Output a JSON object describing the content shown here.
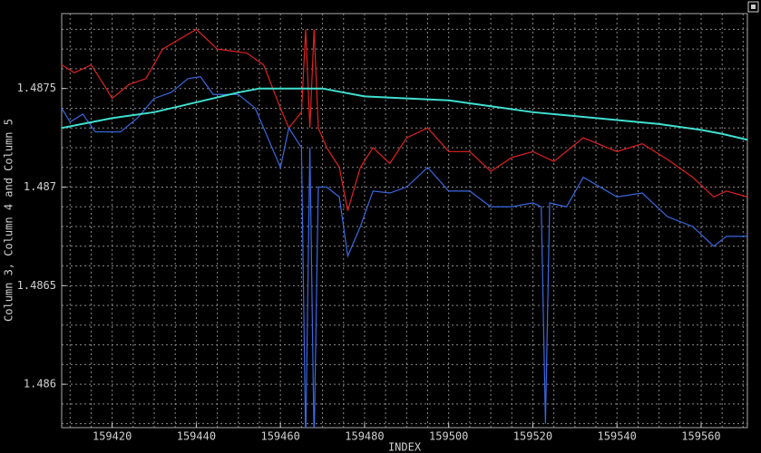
{
  "chart_data": {
    "type": "line",
    "ylabel": "Column 3, Column 4 and Column 5",
    "xlabel": "INDEX",
    "xlim": [
      159408,
      159571
    ],
    "ylim": [
      1.48578,
      1.48788
    ],
    "xticks": [
      159420,
      159440,
      159460,
      159480,
      159500,
      159520,
      159540,
      159560
    ],
    "yticks": [
      1.486,
      1.4865,
      1.487,
      1.4875
    ],
    "xgrid": [
      159410,
      159415,
      159420,
      159425,
      159430,
      159435,
      159440,
      159445,
      159450,
      159455,
      159460,
      159465,
      159470,
      159475,
      159480,
      159485,
      159490,
      159495,
      159500,
      159505,
      159510,
      159515,
      159520,
      159525,
      159530,
      159535,
      159540,
      159545,
      159550,
      159555,
      159560,
      159565,
      159570
    ],
    "ygrid": [
      1.4858,
      1.4859,
      1.486,
      1.4861,
      1.4862,
      1.4863,
      1.4864,
      1.4865,
      1.4866,
      1.4867,
      1.4868,
      1.4869,
      1.487,
      1.4871,
      1.4872,
      1.4873,
      1.4874,
      1.4875,
      1.4876,
      1.4877,
      1.4878
    ],
    "grid": true,
    "series": [
      {
        "color": "#e02222",
        "x": [
          159408,
          159411,
          159415,
          159418,
          159420,
          159424,
          159428,
          159432,
          159436,
          159440,
          159445,
          159452,
          159456,
          159460,
          159462,
          159465,
          159466,
          159467,
          159468,
          159469,
          159471,
          159474,
          159476,
          159479,
          159482,
          159486,
          159490,
          159495,
          159500,
          159505,
          159510,
          159515,
          159520,
          159525,
          159532,
          159540,
          159546,
          159552,
          159558,
          159563,
          159566,
          159571
        ],
        "values": [
          1.48762,
          1.48758,
          1.48762,
          1.48752,
          1.48745,
          1.48752,
          1.48755,
          1.4877,
          1.48775,
          1.4878,
          1.4877,
          1.48768,
          1.48762,
          1.4874,
          1.4873,
          1.48738,
          1.4878,
          1.4873,
          1.4878,
          1.4873,
          1.4872,
          1.4871,
          1.48688,
          1.4871,
          1.4872,
          1.48712,
          1.48725,
          1.4873,
          1.48718,
          1.48718,
          1.48708,
          1.48715,
          1.48718,
          1.48713,
          1.48725,
          1.48718,
          1.48722,
          1.48714,
          1.48705,
          1.48695,
          1.48698,
          1.48695
        ]
      },
      {
        "color": "#3a68e0",
        "x": [
          159408,
          159410,
          159413,
          159416,
          159422,
          159426,
          159430,
          159434,
          159438,
          159441,
          159444,
          159450,
          159454,
          159458,
          159460,
          159462,
          159465,
          159466,
          159467,
          159468,
          159469,
          159471,
          159474,
          159476,
          159479,
          159482,
          159486,
          159490,
          159495,
          159500,
          159505,
          159510,
          159515,
          159520,
          159522,
          159523,
          159524,
          159528,
          159532,
          159540,
          159546,
          159552,
          159558,
          159563,
          159566,
          159571
        ],
        "values": [
          1.4874,
          1.48733,
          1.48737,
          1.48728,
          1.48728,
          1.48735,
          1.48745,
          1.48748,
          1.48755,
          1.48756,
          1.48747,
          1.48747,
          1.4874,
          1.4872,
          1.4871,
          1.4873,
          1.4872,
          1.4857,
          1.4872,
          1.4857,
          1.487,
          1.487,
          1.48695,
          1.48665,
          1.4868,
          1.48698,
          1.48697,
          1.487,
          1.4871,
          1.48698,
          1.48698,
          1.4869,
          1.4869,
          1.48692,
          1.4869,
          1.4858,
          1.48692,
          1.4869,
          1.48705,
          1.48695,
          1.48697,
          1.48685,
          1.4868,
          1.4867,
          1.48675,
          1.48675
        ]
      },
      {
        "color": "#40e0d0",
        "x": [
          159408,
          159420,
          159430,
          159440,
          159450,
          159455,
          159470,
          159475,
          159480,
          159490,
          159500,
          159510,
          159520,
          159530,
          159540,
          159550,
          159560,
          159565,
          159571
        ],
        "values": [
          1.4873,
          1.48735,
          1.48738,
          1.48743,
          1.48748,
          1.4875,
          1.4875,
          1.48748,
          1.48746,
          1.48745,
          1.48744,
          1.48741,
          1.48738,
          1.48736,
          1.48734,
          1.48732,
          1.48729,
          1.48727,
          1.48724
        ]
      }
    ]
  }
}
